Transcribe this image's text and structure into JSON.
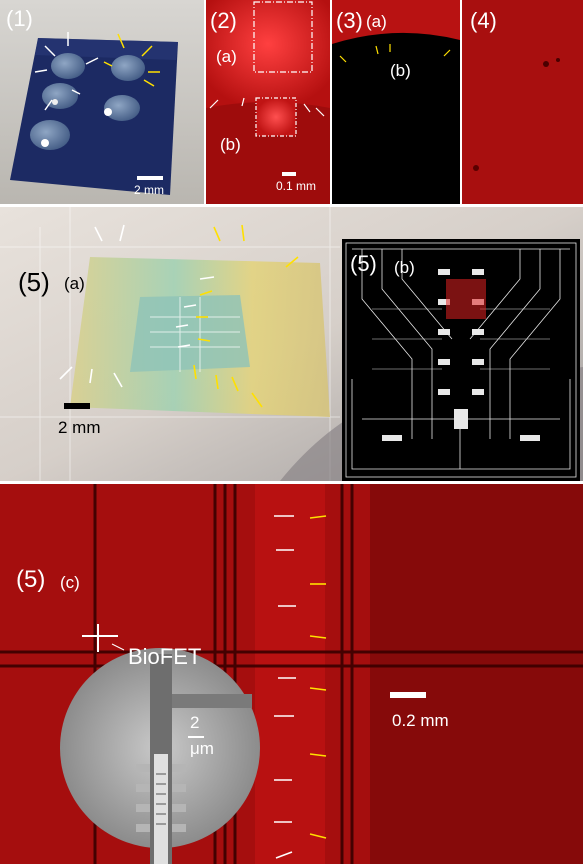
{
  "panel1": {
    "label": "(1)",
    "scale": "2 mm"
  },
  "panel2": {
    "label": "(2)",
    "sub_a": "(a)",
    "sub_b": "(b)",
    "scale": "0.1 mm"
  },
  "panel3": {
    "label": "(3)",
    "sub_a": "(a)",
    "sub_b": "(b)"
  },
  "panel4": {
    "label": "(4)"
  },
  "panel5a": {
    "label": "(5)",
    "sub": "(a)",
    "scale": "2 mm"
  },
  "panel5b": {
    "label": "(5)",
    "sub": "(b)"
  },
  "panel5c": {
    "label": "(5)",
    "sub": "(c)",
    "biofet": "BioFET",
    "scale": "0.2 mm",
    "inset_scale_value": "2",
    "inset_scale_unit": "μm"
  },
  "colors": {
    "red": "#c81414",
    "dark_red": "#5a0000",
    "arrow_white": "#ffffff",
    "arrow_yellow": "#ffe000"
  }
}
